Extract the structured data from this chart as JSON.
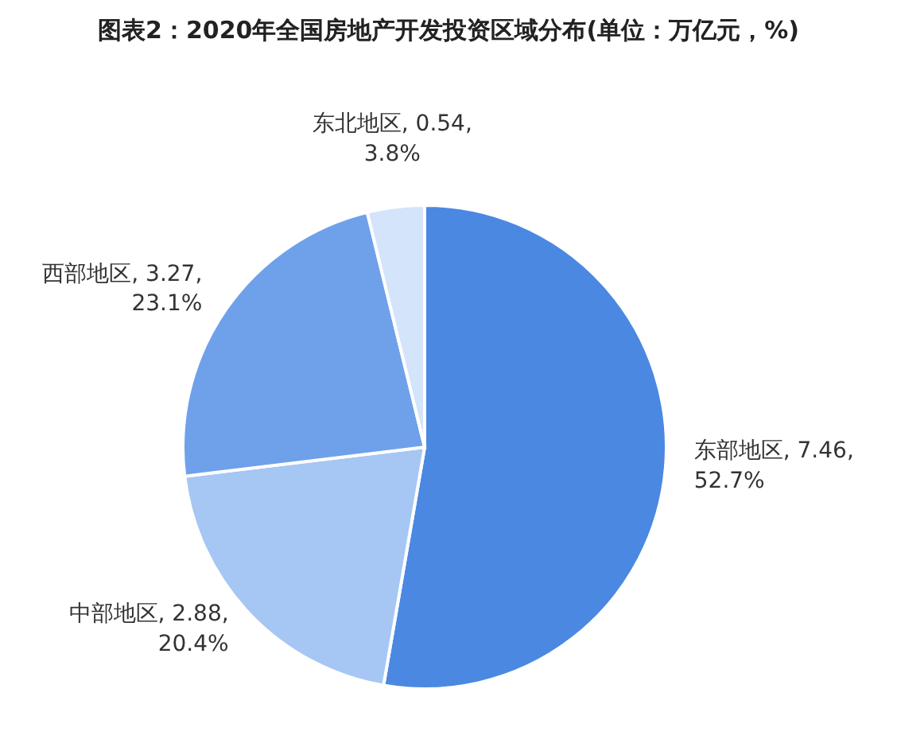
{
  "chart_data": {
    "type": "pie",
    "title": "图表2：2020年全国房地产开发投资区域分布(单位：万亿元，%)",
    "categories": [
      "东部地区",
      "中部地区",
      "西部地区",
      "东北地区"
    ],
    "values": [
      7.46,
      2.88,
      3.27,
      0.54
    ],
    "colors": [
      "#4a88e2",
      "#a6c6f4",
      "#6fa1ea",
      "#d3e4fb"
    ],
    "value_labels": [
      "7.46, 52.7%",
      "2.88, 20.4%",
      "3.27, 23.1%",
      "0.54, 3.8%"
    ],
    "legend": false
  }
}
